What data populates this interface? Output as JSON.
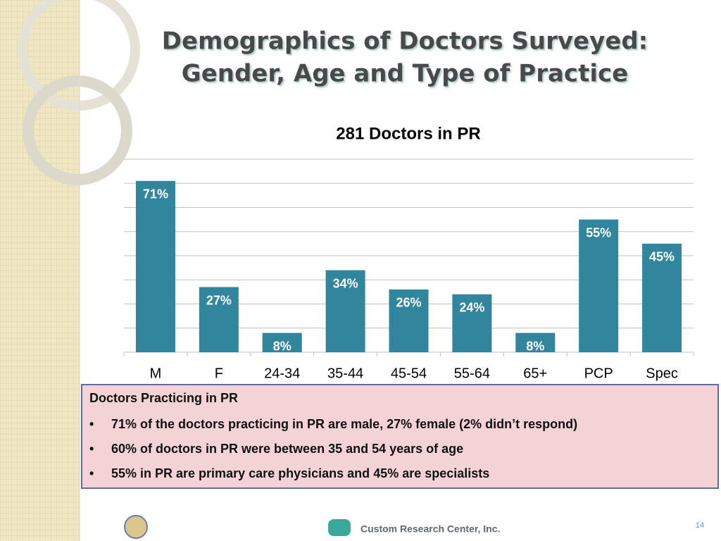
{
  "slide": {
    "title_lines": [
      "Demographics of Doctors Surveyed:",
      "Gender, Age and Type of Practice"
    ],
    "box": {
      "heading": "Doctors Practicing in PR",
      "bullets": [
        "71% of the doctors practicing in PR are male, 27% female (2% didn’t respond)",
        "60% of doctors in PR were between 35 and 54 years of age",
        "55% in PR are primary care physicians and 45% are specialists"
      ]
    },
    "footer": "Custom Research Center, Inc.",
    "page_number": "14"
  },
  "chart_data": {
    "type": "bar",
    "title": "281 Doctors in PR",
    "categories": [
      "M",
      "F",
      "24-34",
      "35-44",
      "45-54",
      "55-64",
      "65+",
      "PCP",
      "Spec"
    ],
    "values": [
      71,
      27,
      8,
      34,
      26,
      24,
      8,
      55,
      45
    ],
    "value_labels": [
      "71%",
      "27%",
      "8%",
      "34%",
      "26%",
      "24%",
      "8%",
      "55%",
      "45%"
    ],
    "color": "#31859c",
    "ylim": [
      0,
      80
    ],
    "yticks": [
      0,
      10,
      20,
      30,
      40,
      50,
      60,
      70,
      80
    ],
    "grid": true
  }
}
